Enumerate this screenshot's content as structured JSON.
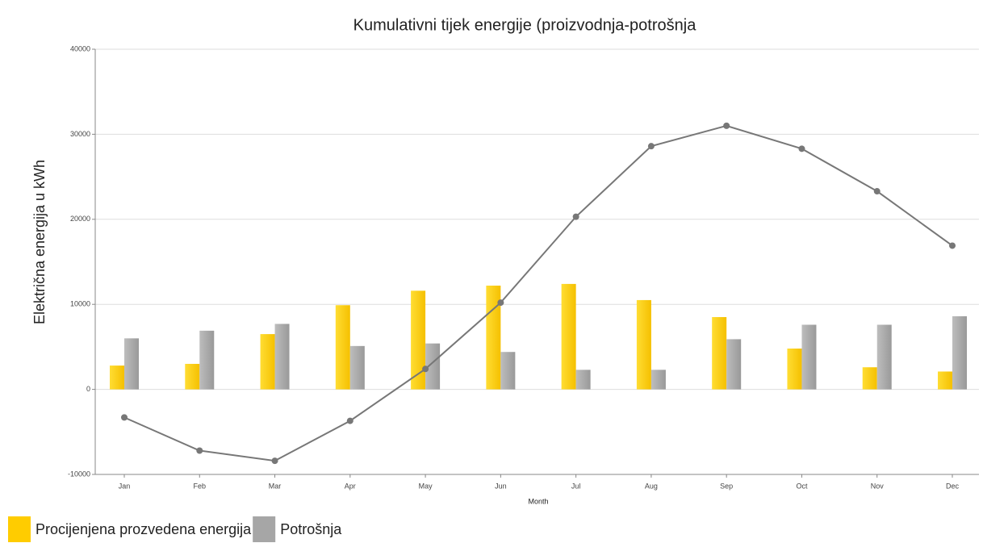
{
  "chart_data": {
    "type": "bar",
    "title": "Kumulativni tijek energije (proizvodnja-potrošnja",
    "x_label": "Month",
    "y_label": "Električna energija u kWh",
    "categories": [
      "Jan",
      "Feb",
      "Mar",
      "Apr",
      "May",
      "Jun",
      "Jul",
      "Aug",
      "Sep",
      "Oct",
      "Nov",
      "Dec"
    ],
    "series": [
      {
        "name": "Procijenjena prozvedena energija",
        "color": "#ffcc00",
        "values": [
          2800,
          3000,
          6500,
          9900,
          11600,
          12200,
          12400,
          10500,
          8500,
          4800,
          2600,
          2100
        ]
      },
      {
        "name": "Potrošnja",
        "color": "#a6a6a6",
        "values": [
          6000,
          6900,
          7700,
          5100,
          5400,
          4400,
          2300,
          2300,
          5900,
          7600,
          7600,
          8600
        ]
      }
    ],
    "line": {
      "color": "#777777",
      "values": [
        -3300,
        -7200,
        -8400,
        -3700,
        2400,
        10200,
        20300,
        28600,
        31000,
        28300,
        23300,
        16900
      ]
    },
    "ylim": [
      -10000,
      40000
    ],
    "yticks": [
      -10000,
      0,
      10000,
      20000,
      30000,
      40000
    ],
    "grid": true,
    "legend": "bottom"
  }
}
